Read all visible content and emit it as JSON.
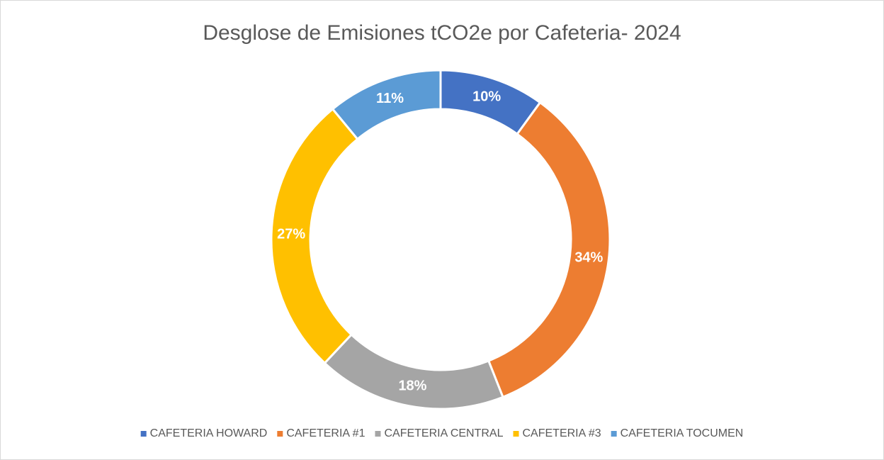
{
  "chart_data": {
    "type": "doughnut",
    "title": "Desglose de Emisiones tCO2e por Cafeteria- 2024",
    "categories": [
      "CAFETERIA HOWARD",
      "CAFETERIA #1",
      "CAFETERIA CENTRAL",
      "CAFETERIA #3",
      "CAFETERIA TOCUMEN"
    ],
    "values": [
      10,
      34,
      18,
      27,
      11
    ],
    "value_labels": [
      "10%",
      "34%",
      "18%",
      "27%",
      "11%"
    ],
    "colors": [
      "#4472c4",
      "#ed7d31",
      "#a5a5a5",
      "#ffc000",
      "#5b9bd5"
    ],
    "legend": "bottom"
  }
}
